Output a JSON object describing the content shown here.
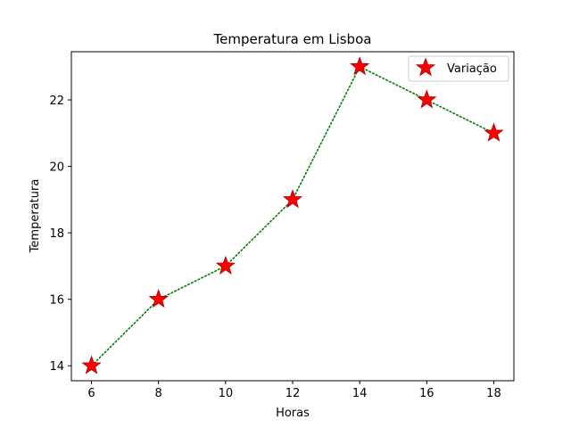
{
  "chart_data": {
    "type": "line",
    "title": "Temperatura em Lisboa",
    "xlabel": "Horas",
    "ylabel": "Temperatura",
    "x": [
      6,
      8,
      10,
      12,
      14,
      16,
      18
    ],
    "xticks": [
      6,
      8,
      10,
      12,
      14,
      16,
      18
    ],
    "yticks": [
      14,
      16,
      18,
      20,
      22
    ],
    "xlim": [
      5.4,
      18.6
    ],
    "ylim": [
      13.55,
      23.45
    ],
    "grid": false,
    "legend_position": "top-right",
    "series": [
      {
        "name": "Variação",
        "values": [
          14,
          16,
          17,
          19,
          23,
          22,
          21
        ],
        "line_style": "dotted",
        "line_color": "#008000",
        "marker": "star",
        "marker_color": "#ff0000"
      }
    ]
  }
}
